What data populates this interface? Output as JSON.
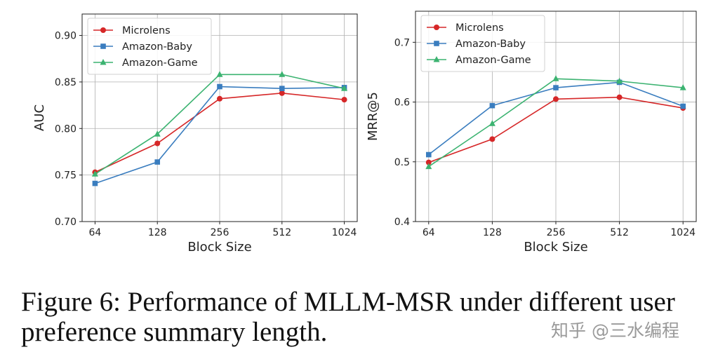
{
  "chart_data": [
    {
      "type": "line",
      "categories": [
        "64",
        "128",
        "256",
        "512",
        "1024"
      ],
      "xlabel": "Block Size",
      "ylabel": "AUC",
      "ylim": [
        0.7,
        0.923
      ],
      "yticks": [
        "0.70",
        "0.75",
        "0.80",
        "0.85",
        "0.90"
      ],
      "grid": true,
      "legend": "top-left",
      "series": [
        {
          "name": "Microlens",
          "color": "#d62728",
          "marker": "circle",
          "values": [
            0.753,
            0.784,
            0.832,
            0.838,
            0.831
          ]
        },
        {
          "name": "Amazon-Baby",
          "color": "#3a7dbf",
          "marker": "square",
          "values": [
            0.741,
            0.764,
            0.845,
            0.843,
            0.844
          ]
        },
        {
          "name": "Amazon-Game",
          "color": "#3cb371",
          "marker": "triangle",
          "values": [
            0.751,
            0.794,
            0.858,
            0.858,
            0.843
          ]
        }
      ]
    },
    {
      "type": "line",
      "categories": [
        "64",
        "128",
        "256",
        "512",
        "1024"
      ],
      "xlabel": "Block Size",
      "ylabel": "MRR@5",
      "ylim": [
        0.4,
        0.752
      ],
      "yticks": [
        "0.4",
        "0.5",
        "0.6",
        "0.7"
      ],
      "grid": true,
      "legend": "top-left",
      "series": [
        {
          "name": "Microlens",
          "color": "#d62728",
          "marker": "circle",
          "values": [
            0.499,
            0.538,
            0.605,
            0.608,
            0.59
          ]
        },
        {
          "name": "Amazon-Baby",
          "color": "#3a7dbf",
          "marker": "square",
          "values": [
            0.512,
            0.594,
            0.624,
            0.633,
            0.593
          ]
        },
        {
          "name": "Amazon-Game",
          "color": "#3cb371",
          "marker": "triangle",
          "values": [
            0.492,
            0.564,
            0.639,
            0.635,
            0.624
          ]
        }
      ]
    }
  ],
  "caption": {
    "line1": "Figure 6: Performance of MLLM-MSR under different user",
    "line2": "preference summary length."
  },
  "watermark": "知乎 @三水编程"
}
